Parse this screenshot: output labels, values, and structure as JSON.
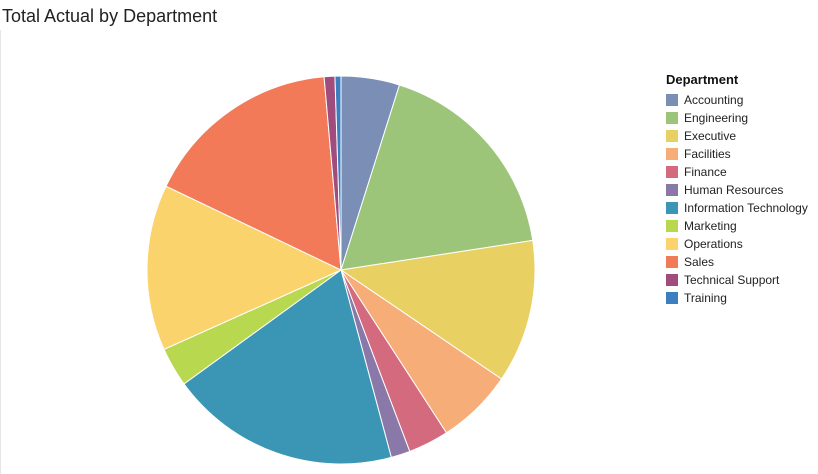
{
  "chart_data": {
    "type": "pie",
    "title": "Total Actual by Department",
    "legend_title": "Department",
    "legend_position": "right",
    "categories": [
      "Accounting",
      "Engineering",
      "Executive",
      "Facilities",
      "Finance",
      "Human Resources",
      "Information Technology",
      "Marketing",
      "Operations",
      "Sales",
      "Technical Support",
      "Training"
    ],
    "values": [
      4.9,
      17.8,
      12.0,
      6.4,
      3.4,
      1.6,
      19.3,
      3.3,
      13.9,
      16.6,
      0.9,
      0.5
    ],
    "colors": [
      "#7b8eb6",
      "#9cc57a",
      "#e8d063",
      "#f6ad78",
      "#d46a7d",
      "#8a78a8",
      "#3b96b5",
      "#b7d84f",
      "#fbd36c",
      "#f27a59",
      "#a04d7e",
      "#3b7fc0"
    ]
  }
}
